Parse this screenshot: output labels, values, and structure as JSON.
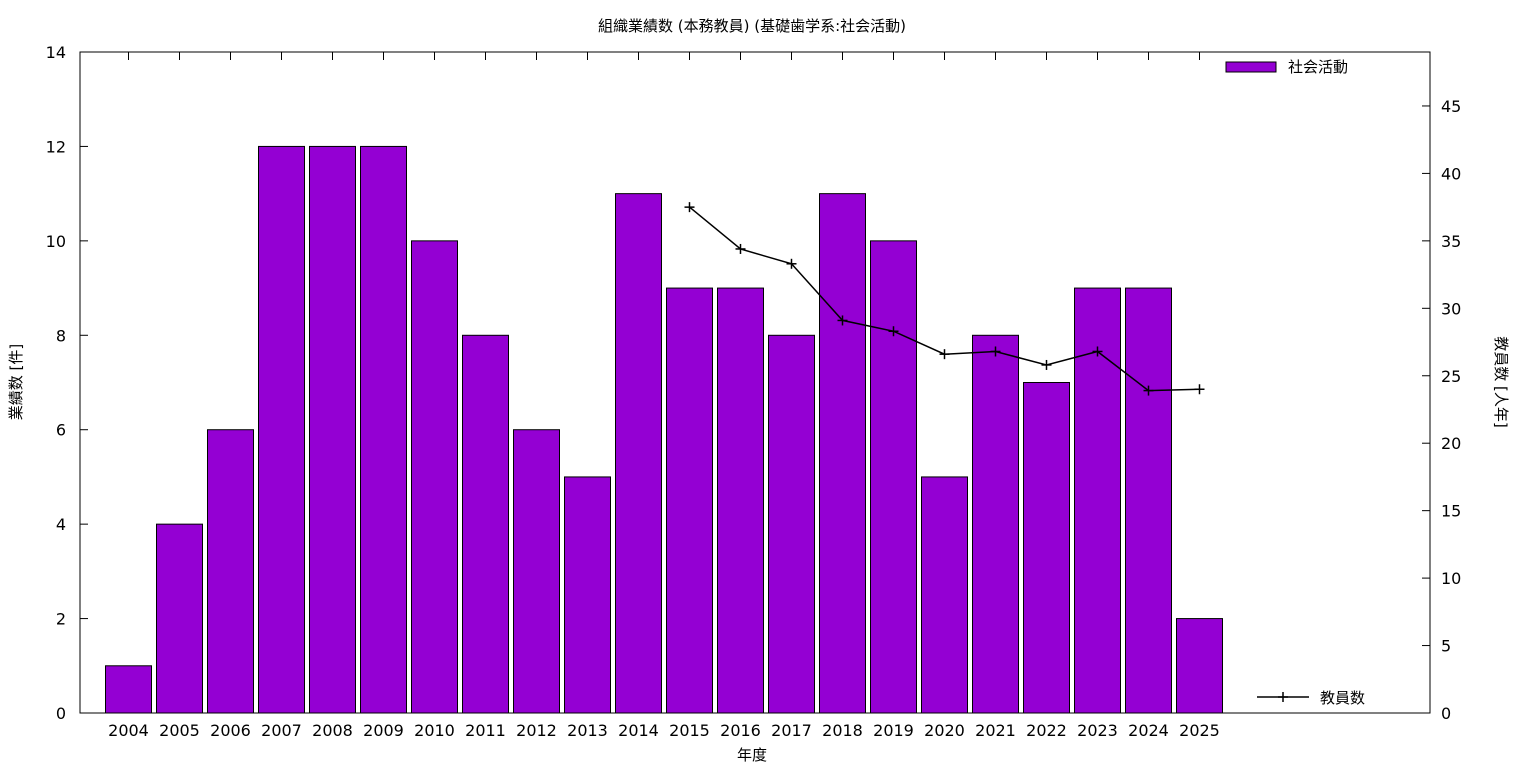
{
  "chart_data": {
    "type": "bar",
    "title": "組織業績数 (本務教員) (基礎歯学系:社会活動)",
    "xlabel": "年度",
    "ylabel": "業績数 [件]",
    "y2label": "教員数 [人年]",
    "categories": [
      "2004",
      "2005",
      "2006",
      "2007",
      "2008",
      "2009",
      "2010",
      "2011",
      "2012",
      "2013",
      "2014",
      "2015",
      "2016",
      "2017",
      "2018",
      "2019",
      "2020",
      "2021",
      "2022",
      "2023",
      "2024",
      "2025"
    ],
    "series": [
      {
        "name": "社会活動",
        "type": "bar",
        "axis": "left",
        "color": "#9400d3",
        "values": [
          1,
          4,
          6,
          12,
          12,
          12,
          10,
          8,
          6,
          5,
          11,
          9,
          9,
          8,
          11,
          10,
          5,
          8,
          7,
          9,
          9,
          2
        ]
      },
      {
        "name": "教員数",
        "type": "line",
        "axis": "right",
        "color": "#000000",
        "values": [
          null,
          null,
          null,
          null,
          null,
          null,
          null,
          null,
          null,
          null,
          null,
          37.5,
          34.4,
          33.3,
          29.1,
          28.3,
          26.6,
          26.8,
          25.8,
          26.8,
          23.9,
          24.0
        ]
      }
    ],
    "ylim": [
      0,
      14
    ],
    "yticks": [
      0,
      2,
      4,
      6,
      8,
      10,
      12,
      14
    ],
    "y2lim": [
      0,
      49
    ],
    "y2ticks": [
      0,
      5,
      10,
      15,
      20,
      25,
      30,
      35,
      40,
      45
    ],
    "legend": [
      "top-right",
      "bottom-right"
    ],
    "grid": false
  }
}
